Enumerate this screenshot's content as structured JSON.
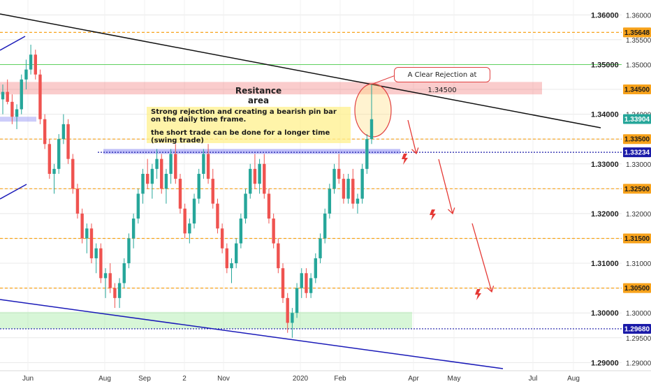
{
  "chart_data": {
    "type": "candlestick",
    "symbol_hint": "GBPUSD",
    "x_ticks": [
      "Jun",
      "Aug",
      "Sep",
      "2",
      "Nov",
      "2020",
      "Feb",
      "Apr",
      "May",
      "Jul",
      "Aug"
    ],
    "y_ticks_major": [
      "1.36000",
      "1.35000",
      "1.34000",
      "1.33000",
      "1.32000",
      "1.31000",
      "1.30000",
      "1.29000"
    ],
    "y_ticks_minor": [
      "1.35500",
      "1.34500",
      "1.33500",
      "1.32500",
      "1.31500",
      "1.30500",
      "1.29500"
    ],
    "ylim": [
      1.2885,
      1.363
    ],
    "price_tags": [
      {
        "label": "1.35648",
        "value": 1.35648,
        "color": "#f7a21b",
        "line": "dashed"
      },
      {
        "label": "1.34500",
        "value": 1.345,
        "color": "#f7a21b",
        "line": "none"
      },
      {
        "label": "1.33904",
        "value": 1.33904,
        "color": "#26a69a",
        "line": "none"
      },
      {
        "label": "1.33500",
        "value": 1.335,
        "color": "#f7a21b",
        "line": "dashed"
      },
      {
        "label": "1.33234",
        "value": 1.33234,
        "color": "#1a1aa8",
        "line": "dotted"
      },
      {
        "label": "1.32500",
        "value": 1.325,
        "color": "#f7a21b",
        "line": "dashed"
      },
      {
        "label": "1.31500",
        "value": 1.315,
        "color": "#f7a21b",
        "line": "dashed"
      },
      {
        "label": "1.30500",
        "value": 1.305,
        "color": "#f7a21b",
        "line": "dashed"
      },
      {
        "label": "1.29680",
        "value": 1.2968,
        "color": "#1a1aa8",
        "line": "dotted"
      }
    ],
    "green_line_value": 1.35,
    "resistance_zone": [
      1.344,
      1.3465
    ],
    "support_zone": [
      1.2968,
      1.3002
    ],
    "annotations": {
      "resistance_label": "Resitance area",
      "callout": "A Clear Rejection at 1.34500",
      "note_line1": "Strong rejection and creating a bearish pin bar on the daily time frame.",
      "note_line2": "the short trade can be done for a longer time (swing trade)"
    },
    "candles": [
      [
        1.343,
        1.346,
        1.34,
        1.3445
      ],
      [
        1.3445,
        1.347,
        1.342,
        1.3425
      ],
      [
        1.3425,
        1.344,
        1.338,
        1.3395
      ],
      [
        1.3395,
        1.342,
        1.337,
        1.341
      ],
      [
        1.341,
        1.348,
        1.34,
        1.347
      ],
      [
        1.347,
        1.351,
        1.345,
        1.349
      ],
      [
        1.349,
        1.354,
        1.348,
        1.352
      ],
      [
        1.352,
        1.353,
        1.347,
        1.348
      ],
      [
        1.348,
        1.349,
        1.338,
        1.339
      ],
      [
        1.339,
        1.34,
        1.333,
        1.334
      ],
      [
        1.334,
        1.335,
        1.327,
        1.328
      ],
      [
        1.328,
        1.33,
        1.324,
        1.329
      ],
      [
        1.329,
        1.336,
        1.328,
        1.335
      ],
      [
        1.335,
        1.34,
        1.334,
        1.338
      ],
      [
        1.338,
        1.339,
        1.33,
        1.331
      ],
      [
        1.331,
        1.332,
        1.324,
        1.325
      ],
      [
        1.325,
        1.326,
        1.319,
        1.32
      ],
      [
        1.32,
        1.321,
        1.314,
        1.315
      ],
      [
        1.315,
        1.318,
        1.312,
        1.317
      ],
      [
        1.317,
        1.318,
        1.31,
        1.311
      ],
      [
        1.311,
        1.314,
        1.308,
        1.313
      ],
      [
        1.313,
        1.314,
        1.306,
        1.307
      ],
      [
        1.307,
        1.309,
        1.303,
        1.308
      ],
      [
        1.308,
        1.31,
        1.304,
        1.305
      ],
      [
        1.305,
        1.306,
        1.301,
        1.303
      ],
      [
        1.303,
        1.307,
        1.301,
        1.306
      ],
      [
        1.306,
        1.311,
        1.305,
        1.31
      ],
      [
        1.31,
        1.316,
        1.309,
        1.315
      ],
      [
        1.315,
        1.32,
        1.313,
        1.319
      ],
      [
        1.319,
        1.325,
        1.318,
        1.324
      ],
      [
        1.324,
        1.329,
        1.322,
        1.328
      ],
      [
        1.328,
        1.331,
        1.325,
        1.326
      ],
      [
        1.326,
        1.33,
        1.323,
        1.329
      ],
      [
        1.329,
        1.333,
        1.327,
        1.331
      ],
      [
        1.331,
        1.332,
        1.324,
        1.325
      ],
      [
        1.325,
        1.329,
        1.322,
        1.328
      ],
      [
        1.328,
        1.333,
        1.326,
        1.332
      ],
      [
        1.332,
        1.334,
        1.326,
        1.327
      ],
      [
        1.327,
        1.328,
        1.32,
        1.321
      ],
      [
        1.321,
        1.322,
        1.315,
        1.316
      ],
      [
        1.316,
        1.319,
        1.314,
        1.318
      ],
      [
        1.318,
        1.324,
        1.317,
        1.323
      ],
      [
        1.323,
        1.329,
        1.322,
        1.328
      ],
      [
        1.328,
        1.333,
        1.327,
        1.332
      ],
      [
        1.332,
        1.334,
        1.326,
        1.327
      ],
      [
        1.327,
        1.329,
        1.321,
        1.322
      ],
      [
        1.322,
        1.323,
        1.316,
        1.317
      ],
      [
        1.317,
        1.318,
        1.312,
        1.313
      ],
      [
        1.313,
        1.314,
        1.308,
        1.309
      ],
      [
        1.309,
        1.311,
        1.306,
        1.31
      ],
      [
        1.31,
        1.315,
        1.309,
        1.314
      ],
      [
        1.314,
        1.32,
        1.313,
        1.319
      ],
      [
        1.319,
        1.325,
        1.318,
        1.324
      ],
      [
        1.324,
        1.33,
        1.323,
        1.329
      ],
      [
        1.329,
        1.332,
        1.325,
        1.326
      ],
      [
        1.326,
        1.331,
        1.324,
        1.33
      ],
      [
        1.33,
        1.332,
        1.323,
        1.324
      ],
      [
        1.324,
        1.325,
        1.318,
        1.319
      ],
      [
        1.319,
        1.32,
        1.313,
        1.314
      ],
      [
        1.314,
        1.315,
        1.308,
        1.309
      ],
      [
        1.309,
        1.31,
        1.302,
        1.303
      ],
      [
        1.303,
        1.304,
        1.296,
        1.298
      ],
      [
        1.298,
        1.301,
        1.295,
        1.3
      ],
      [
        1.3,
        1.306,
        1.299,
        1.305
      ],
      [
        1.305,
        1.309,
        1.303,
        1.308
      ],
      [
        1.308,
        1.309,
        1.303,
        1.304
      ],
      [
        1.304,
        1.308,
        1.303,
        1.307
      ],
      [
        1.307,
        1.312,
        1.306,
        1.311
      ],
      [
        1.311,
        1.316,
        1.31,
        1.315
      ],
      [
        1.315,
        1.321,
        1.314,
        1.32
      ],
      [
        1.32,
        1.326,
        1.319,
        1.325
      ],
      [
        1.325,
        1.33,
        1.324,
        1.329
      ],
      [
        1.329,
        1.332,
        1.326,
        1.327
      ],
      [
        1.327,
        1.328,
        1.322,
        1.323
      ],
      [
        1.323,
        1.328,
        1.322,
        1.327
      ],
      [
        1.327,
        1.329,
        1.321,
        1.322
      ],
      [
        1.322,
        1.324,
        1.32,
        1.323
      ],
      [
        1.323,
        1.33,
        1.322,
        1.329
      ],
      [
        1.329,
        1.336,
        1.328,
        1.335
      ],
      [
        1.335,
        1.346,
        1.334,
        1.339
      ]
    ]
  }
}
